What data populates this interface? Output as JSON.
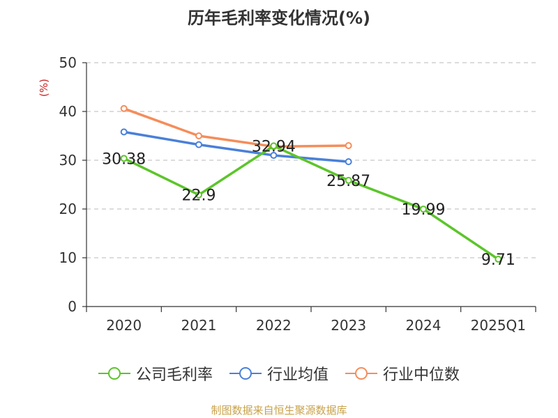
{
  "chart_data": {
    "type": "line",
    "title": "历年毛利率变化情况(%)",
    "ylabel": "(%)",
    "xlabel": "",
    "categories": [
      "2020",
      "2021",
      "2022",
      "2023",
      "2024",
      "2025Q1"
    ],
    "ylim": [
      0,
      50
    ],
    "yticks": [
      0,
      10,
      20,
      30,
      40,
      50
    ],
    "ytick_labels": [
      "0",
      "10",
      "20",
      "30",
      "40",
      "50"
    ],
    "grid": true,
    "legend_position": "bottom",
    "series": [
      {
        "name": "公司毛利率",
        "color": "#5cc52a",
        "values": [
          30.38,
          22.9,
          32.94,
          25.87,
          19.99,
          9.71
        ],
        "labels": [
          "30.38",
          "22.9",
          "32.94",
          "25.87",
          "19.99",
          "9.71"
        ]
      },
      {
        "name": "行业均值",
        "color": "#4a80d9",
        "values": [
          35.8,
          33.2,
          31.0,
          29.7,
          null,
          null
        ]
      },
      {
        "name": "行业中位数",
        "color": "#f58d5a",
        "values": [
          40.6,
          35.0,
          32.8,
          33.0,
          null,
          null
        ]
      }
    ],
    "source": "制图数据来自恒生聚源数据库"
  }
}
